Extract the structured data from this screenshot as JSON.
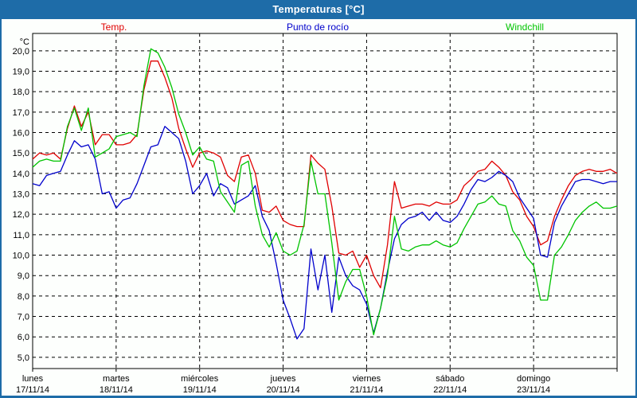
{
  "window": {
    "title": "Temperaturas [°C]"
  },
  "colors": {
    "titlebar_bg": "#1e6ca8",
    "window_border": "#1e6ca8",
    "axis_and_grid": "#000000",
    "temp_red": "#e00000",
    "dew_blue": "#0000cc",
    "windchill_green": "#00c400"
  },
  "chart_data": {
    "type": "line",
    "title": "Temperaturas [°C]",
    "y_unit_label": "°C",
    "legend_position": "top",
    "grid": "dashed",
    "x_axis": {
      "hours_per_day": 24,
      "days": [
        {
          "name": "lunes",
          "date": "17/11/14"
        },
        {
          "name": "martes",
          "date": "18/11/14"
        },
        {
          "name": "miércoles",
          "date": "19/11/14"
        },
        {
          "name": "jueves",
          "date": "20/11/14"
        },
        {
          "name": "viernes",
          "date": "21/11/14"
        },
        {
          "name": "sábado",
          "date": "22/11/14"
        },
        {
          "name": "domingo",
          "date": "23/11/14"
        }
      ]
    },
    "y_axis": {
      "tick_min": 5,
      "tick_max": 20,
      "tick_step": 1,
      "tick_format": "comma-decimal",
      "ylim": [
        4.45,
        20.85
      ]
    },
    "series": [
      {
        "name": "Temp.",
        "color": "#e00000",
        "x_step_hours": 2,
        "values": [
          14.7,
          15.0,
          14.9,
          15.0,
          14.7,
          16.2,
          17.3,
          16.3,
          17.0,
          15.4,
          15.9,
          15.9,
          15.4,
          15.4,
          15.5,
          15.9,
          18.1,
          19.5,
          19.5,
          18.7,
          17.7,
          16.2,
          15.2,
          14.3,
          15.0,
          15.1,
          15.0,
          14.8,
          13.9,
          13.6,
          14.8,
          14.9,
          14.0,
          12.2,
          12.1,
          12.4,
          11.7,
          11.5,
          11.4,
          11.4,
          14.9,
          14.5,
          14.2,
          12.4,
          10.1,
          10.0,
          10.2,
          9.4,
          10.0,
          9.0,
          8.4,
          10.5,
          13.6,
          12.3,
          12.4,
          12.5,
          12.5,
          12.4,
          12.6,
          12.5,
          12.5,
          12.7,
          13.4,
          13.7,
          14.1,
          14.2,
          14.6,
          14.3,
          13.9,
          13.1,
          12.7,
          11.9,
          11.4,
          10.5,
          10.7,
          11.9,
          12.7,
          13.4,
          13.9,
          14.1,
          14.2,
          14.1,
          14.1,
          14.2,
          14.0
        ]
      },
      {
        "name": "Punto de rocío",
        "color": "#0000cc",
        "x_step_hours": 2,
        "values": [
          13.5,
          13.4,
          13.9,
          14.0,
          14.1,
          14.9,
          15.6,
          15.3,
          15.4,
          14.7,
          13.0,
          13.1,
          12.3,
          12.7,
          12.8,
          13.5,
          14.4,
          15.3,
          15.4,
          16.3,
          16.0,
          15.7,
          14.6,
          13.0,
          13.4,
          14.0,
          12.9,
          13.5,
          13.3,
          12.5,
          12.7,
          12.9,
          13.4,
          11.9,
          11.2,
          9.6,
          7.8,
          6.9,
          5.9,
          6.4,
          10.3,
          8.3,
          10.0,
          7.2,
          9.9,
          9.0,
          8.5,
          8.3,
          7.6,
          6.2,
          7.4,
          9.2,
          10.8,
          11.5,
          11.8,
          11.9,
          12.1,
          11.7,
          12.1,
          11.7,
          11.6,
          11.9,
          12.5,
          13.2,
          13.7,
          13.6,
          13.8,
          14.1,
          13.9,
          13.6,
          12.8,
          12.3,
          11.8,
          10.0,
          9.9,
          11.6,
          12.4,
          13.0,
          13.6,
          13.7,
          13.7,
          13.6,
          13.5,
          13.6,
          13.6
        ]
      },
      {
        "name": "Windchill",
        "color": "#00c400",
        "x_step_hours": 2,
        "values": [
          14.3,
          14.6,
          14.7,
          14.6,
          14.6,
          16.3,
          17.2,
          16.1,
          17.2,
          14.8,
          15.0,
          15.2,
          15.8,
          15.9,
          16.0,
          15.8,
          18.3,
          20.1,
          19.9,
          19.2,
          18.2,
          16.9,
          16.0,
          14.9,
          15.3,
          14.7,
          14.6,
          13.1,
          12.6,
          12.1,
          14.4,
          14.6,
          12.4,
          11.0,
          10.4,
          11.1,
          10.2,
          10.0,
          10.2,
          11.5,
          14.6,
          13.0,
          13.0,
          10.6,
          7.8,
          8.7,
          9.3,
          9.3,
          8.0,
          6.1,
          7.4,
          9.0,
          11.9,
          10.3,
          10.2,
          10.4,
          10.5,
          10.5,
          10.7,
          10.5,
          10.4,
          10.6,
          11.3,
          11.9,
          12.5,
          12.6,
          12.9,
          12.5,
          12.4,
          11.2,
          10.7,
          9.9,
          9.5,
          7.8,
          7.8,
          10.0,
          10.4,
          11.0,
          11.7,
          12.1,
          12.4,
          12.6,
          12.3,
          12.3,
          12.4
        ]
      }
    ]
  }
}
